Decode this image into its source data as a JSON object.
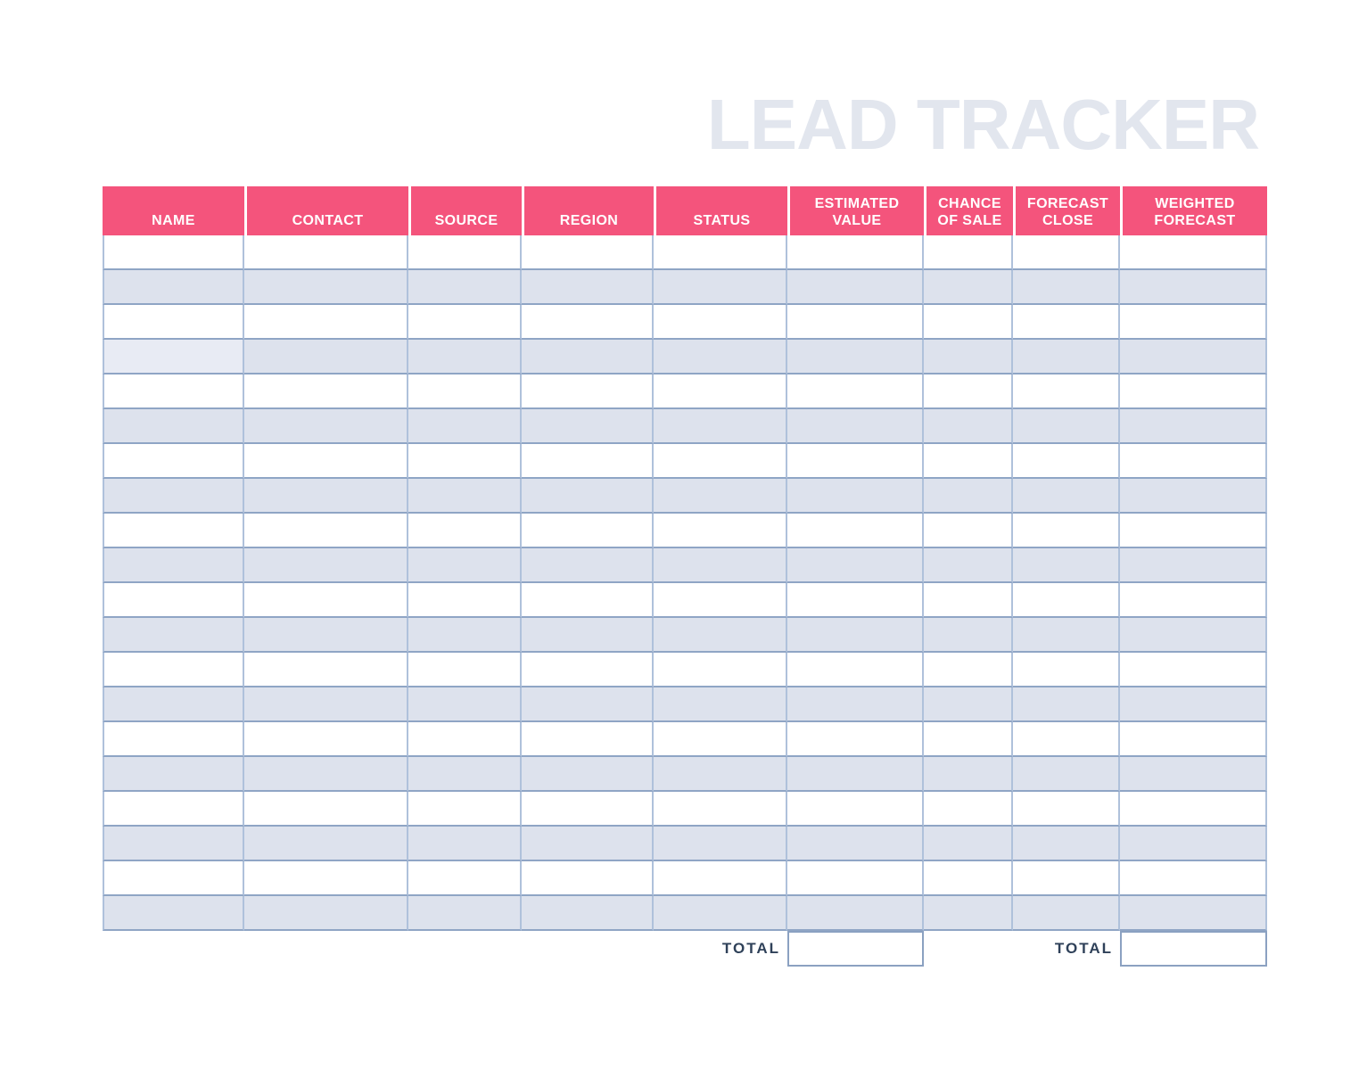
{
  "title": "LEAD TRACKER",
  "table": {
    "columns": [
      {
        "key": "name",
        "label": "NAME"
      },
      {
        "key": "contact",
        "label": "CONTACT"
      },
      {
        "key": "source",
        "label": "SOURCE"
      },
      {
        "key": "region",
        "label": "REGION"
      },
      {
        "key": "status",
        "label": "STATUS"
      },
      {
        "key": "estimated-value",
        "label": "ESTIMATED VALUE"
      },
      {
        "key": "chance-of-sale",
        "label": "CHANCE OF SALE"
      },
      {
        "key": "forecast-close",
        "label": "FORECAST CLOSE"
      },
      {
        "key": "weighted-forecast",
        "label": "WEIGHTED FORECAST"
      }
    ],
    "row_count": 20,
    "cell_values": ""
  },
  "totals": [
    {
      "label": "TOTAL",
      "value": "",
      "for_column": "ESTIMATED VALUE"
    },
    {
      "label": "TOTAL",
      "value": "",
      "for_column": "WEIGHTED FORECAST"
    }
  ],
  "colors": {
    "header_bg": "#f4547c",
    "header_text": "#ffffff",
    "stripe": "#dde2ed",
    "stripe_light": "#e8ebf4",
    "grid_line_horizontal": "#8fa5c5",
    "grid_line_vertical": "#afc1db",
    "title_text": "#e2e6ee",
    "total_text": "#2f4159",
    "total_box_border": "#8ba1c1"
  }
}
